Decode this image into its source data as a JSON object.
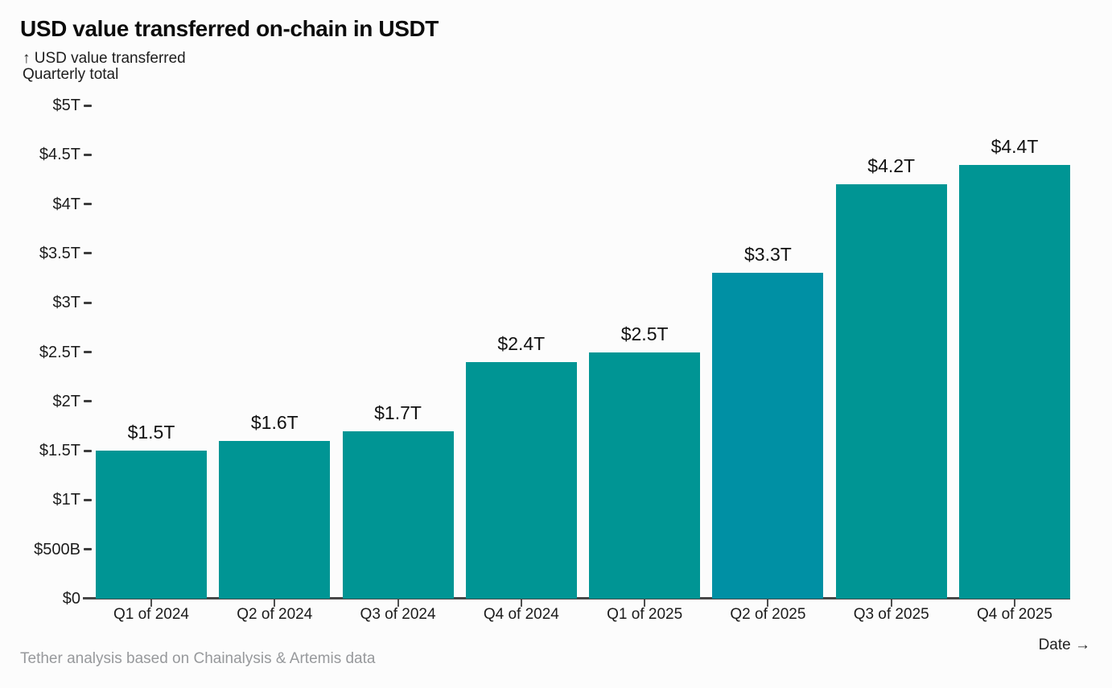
{
  "header": {
    "title": "USD value transferred on-chain in USDT",
    "y_axis_note": "↑ USD value transferred",
    "subtitle": "Quarterly total"
  },
  "chart_data": {
    "type": "bar",
    "title": "USD value transferred on-chain in USDT",
    "subtitle": "Quarterly total",
    "ylabel": "USD value transferred",
    "xlabel": "Date",
    "categories": [
      "Q1 of 2024",
      "Q2 of 2024",
      "Q3 of 2024",
      "Q4 of 2024",
      "Q1 of 2025",
      "Q2 of 2025",
      "Q3 of 2025",
      "Q4 of 2025"
    ],
    "values": [
      1.5,
      1.6,
      1.7,
      2.4,
      2.5,
      3.3,
      4.2,
      4.4
    ],
    "value_unit": "trillion USD",
    "bar_labels": [
      "$1.5T",
      "$1.6T",
      "$1.7T",
      "$2.4T",
      "$2.5T",
      "$3.3T",
      "$4.2T",
      "$4.4T"
    ],
    "bar_colors": [
      "#009594",
      "#009594",
      "#009594",
      "#009594",
      "#009594",
      "#0090A4",
      "#009594",
      "#009594"
    ],
    "y_ticks": [
      {
        "label": "$5T",
        "value": 5
      },
      {
        "label": "$4.5T",
        "value": 4.5
      },
      {
        "label": "$4T",
        "value": 4
      },
      {
        "label": "$3.5T",
        "value": 3.5
      },
      {
        "label": "$3T",
        "value": 3
      },
      {
        "label": "$2.5T",
        "value": 2.5
      },
      {
        "label": "$2T",
        "value": 2
      },
      {
        "label": "$1.5T",
        "value": 1.5
      },
      {
        "label": "$1T",
        "value": 1
      },
      {
        "label": "$500B",
        "value": 0.5
      },
      {
        "label": "$0",
        "value": 0
      }
    ],
    "ylim": [
      0,
      5
    ],
    "grid": false,
    "legend": "none"
  },
  "footer": {
    "source": "Tether analysis based on Chainalysis & Artemis data",
    "x_axis_label": "Date →"
  },
  "colors": {
    "bar_teal": "#009594",
    "bar_teal_blue": "#0090A4",
    "text_dark": "#141414",
    "text_gray": "#97999C",
    "axis_line": "#474747",
    "background": "#FCFCFC"
  }
}
